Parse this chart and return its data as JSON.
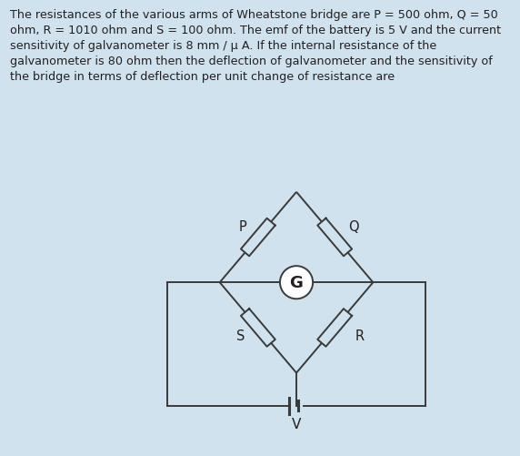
{
  "bg_color": "#cfe2ed",
  "diagram_bg": "#ffffff",
  "text_color": "#231f20",
  "title_text": "The resistances of the various arms of Wheatstone bridge are P = 500 ohm, Q = 50\nohm, R = 1010 ohm and S = 100 ohm. The emf of the battery is 5 V and the current\nsensitivity of galvanometer is 8 mm / μ A. If the internal resistance of the\ngalvanometer is 80 ohm then the deflection of galvanometer and the sensitivity of\nthe bridge in terms of deflection per unit change of resistance are",
  "label_P": "P",
  "label_Q": "Q",
  "label_R": "R",
  "label_S": "S",
  "label_G": "G",
  "label_V": "V",
  "line_color": "#3a3a3a",
  "font_size_text": 9.2,
  "font_size_labels": 10.5
}
